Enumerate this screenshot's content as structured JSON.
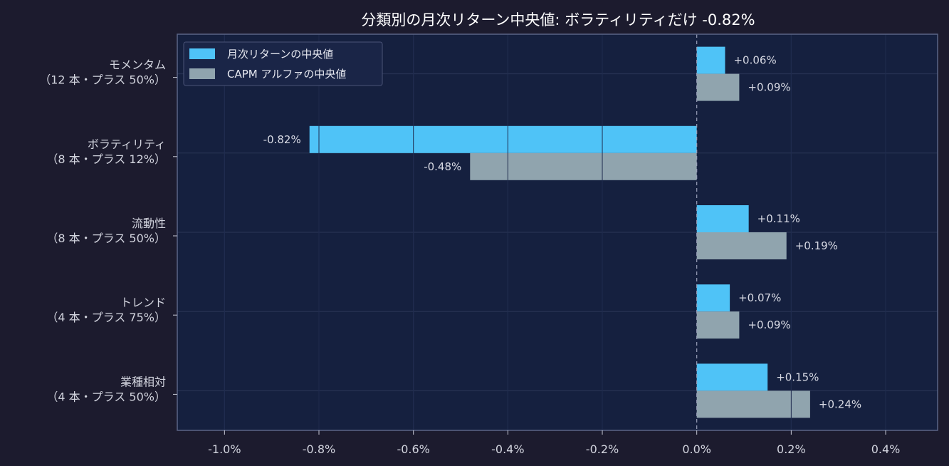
{
  "chart_data": {
    "type": "bar",
    "orientation": "horizontal",
    "title": "分類別の月次リターン中央値: ボラティリティだけ -0.82%",
    "xlabel": "",
    "ylabel": "",
    "xlim": [
      -1.1,
      0.51
    ],
    "x_ticks": [
      "-1.0%",
      "-0.8%",
      "-0.6%",
      "-0.4%",
      "-0.2%",
      "0.0%",
      "0.2%",
      "0.4%"
    ],
    "x_tick_values": [
      -1.0,
      -0.8,
      -0.6,
      -0.4,
      -0.2,
      0.0,
      0.2,
      0.4
    ],
    "categories": [
      {
        "line1": "モメンタム",
        "line2": "（12 本・プラス 50%）"
      },
      {
        "line1": "ボラティリティ",
        "line2": "（8 本・プラス 12%）"
      },
      {
        "line1": "流動性",
        "line2": "（8 本・プラス 50%）"
      },
      {
        "line1": "トレンド",
        "line2": "（4 本・プラス 75%）"
      },
      {
        "line1": "業種相対",
        "line2": "（4 本・プラス 50%）"
      }
    ],
    "series": [
      {
        "name": "月次リターンの中央値",
        "color": "#4fc3f7",
        "values": [
          0.06,
          -0.82,
          0.11,
          0.07,
          0.15
        ],
        "labels": [
          "+0.06%",
          "-0.82%",
          "+0.11%",
          "+0.07%",
          "+0.15%"
        ]
      },
      {
        "name": "CAPM アルファの中央値",
        "color": "#90a4ae",
        "values": [
          0.09,
          -0.48,
          0.19,
          0.09,
          0.24
        ],
        "labels": [
          "+0.09%",
          "-0.48%",
          "+0.19%",
          "+0.09%",
          "+0.24%"
        ]
      }
    ],
    "grid": true,
    "zero_line": "dashed",
    "legend_position": "top-left",
    "colors": {
      "background": "#1c1b2e",
      "plot_background": "#15203f",
      "grid": "#2b3657",
      "axis": "#5b6485"
    }
  }
}
